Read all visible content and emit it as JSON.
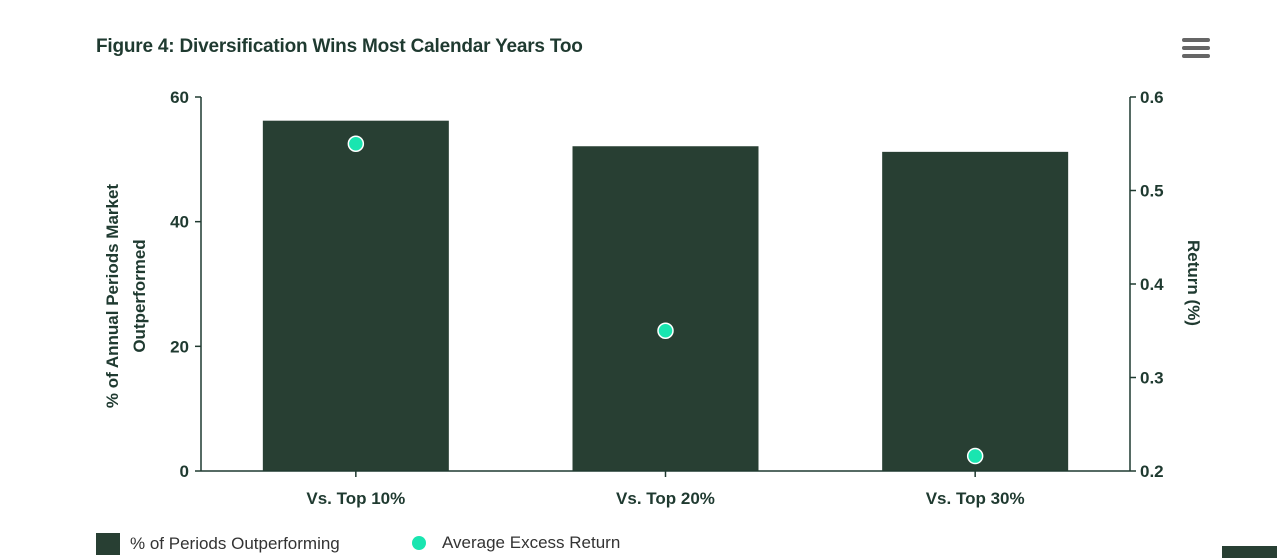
{
  "title": "Figure 4: Diversification Wins Most Calendar Years Too",
  "menu": {
    "icon": "hamburger-menu-icon"
  },
  "chart_data": {
    "type": "bar",
    "title": "Figure 4: Diversification Wins Most Calendar Years Too",
    "categories": [
      "Vs. Top 10%",
      "Vs. Top 20%",
      "Vs. Top 30%"
    ],
    "series": [
      {
        "name": "% of Periods Outperforming",
        "type": "bar",
        "axis": "left",
        "values": [
          56.2,
          52.1,
          51.2
        ],
        "color": "#283f33"
      },
      {
        "name": "Average Excess Return",
        "type": "scatter",
        "axis": "right",
        "values": [
          0.55,
          0.35,
          0.216
        ],
        "color": "#19e5b0"
      }
    ],
    "ylabel": "% of Annual Periods Market Outperformed",
    "ylabel_lines": [
      "% of Annual Periods Market",
      "Outperformed"
    ],
    "y2label": "Return (%)",
    "ylim": [
      0,
      60
    ],
    "y_ticks": [
      0,
      20,
      40,
      60
    ],
    "y_tick_labels": [
      "0",
      "20",
      "40",
      "60"
    ],
    "y2lim": [
      0.2,
      0.6
    ],
    "y2_ticks": [
      0.2,
      0.3,
      0.4,
      0.5,
      0.6
    ],
    "y2_tick_labels": [
      "0.2",
      "0.3",
      "0.4",
      "0.5",
      "0.6"
    ],
    "grid": false,
    "legend_position": "bottom-left"
  },
  "legend": {
    "bar_label": "% of Periods Outperforming",
    "dot_label": "Average Excess Return"
  },
  "colors": {
    "bar": "#283f33",
    "dot": "#19e5b0",
    "axis": "#1f3a30"
  }
}
